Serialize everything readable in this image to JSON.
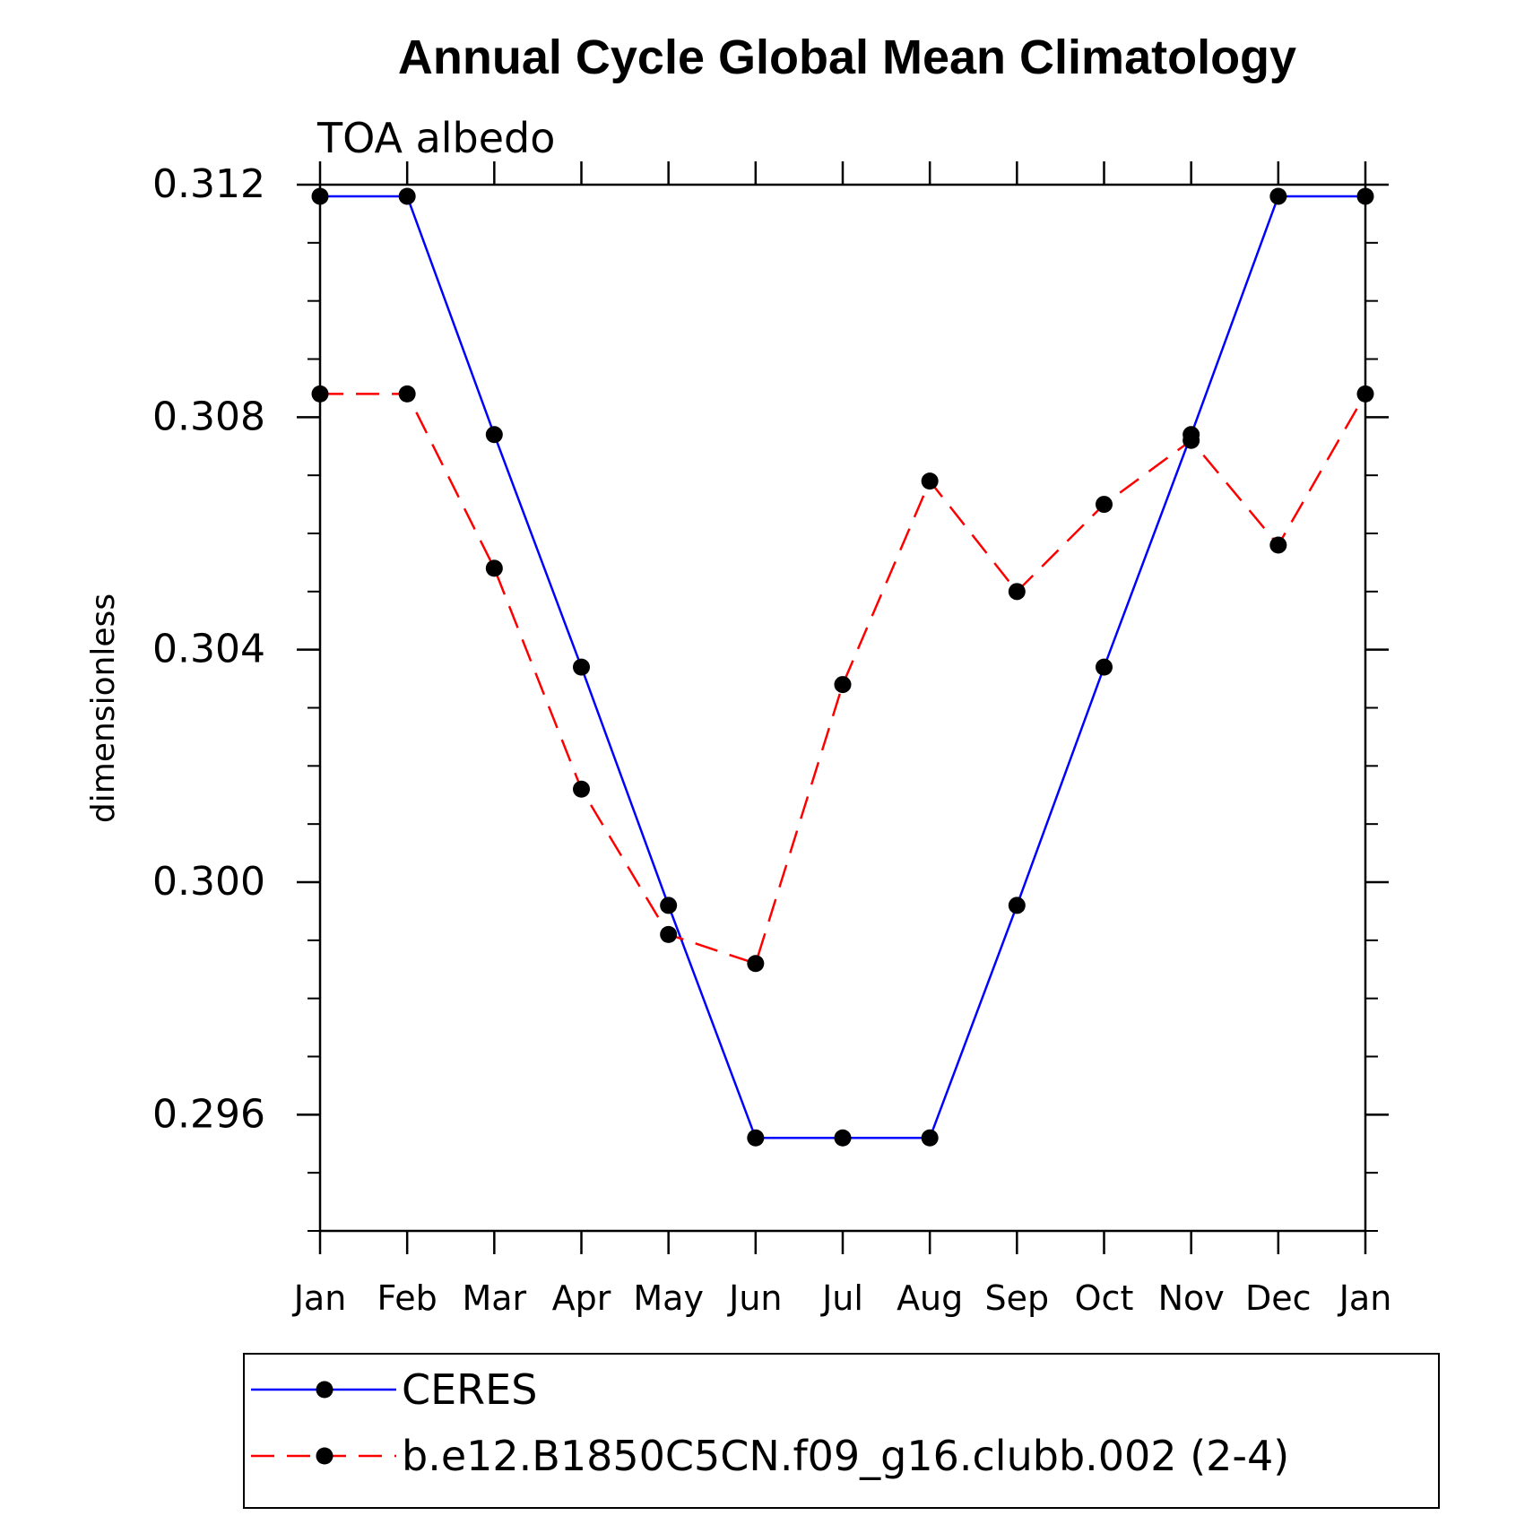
{
  "chart_data": {
    "type": "line",
    "title": "Annual Cycle Global Mean Climatology",
    "subtitle": "TOA albedo",
    "xlabel": "",
    "ylabel": "dimensionless",
    "categories": [
      "Jan",
      "Feb",
      "Mar",
      "Apr",
      "May",
      "Jun",
      "Jul",
      "Aug",
      "Sep",
      "Oct",
      "Nov",
      "Dec",
      "Jan"
    ],
    "ylim": [
      0.294,
      0.312
    ],
    "yticks": [
      0.296,
      0.3,
      0.304,
      0.308,
      0.312
    ],
    "ytick_labels": [
      "0.296",
      "0.300",
      "0.304",
      "0.308",
      "0.312"
    ],
    "legend_position": "bottom",
    "series": [
      {
        "name": "CERES",
        "color": "#0000ff",
        "dash": "solid",
        "values": [
          0.3118,
          0.3118,
          0.3077,
          0.3037,
          0.2996,
          0.2956,
          0.2956,
          0.2956,
          0.2996,
          0.3037,
          0.3077,
          0.3118,
          0.3118
        ]
      },
      {
        "name": "b.e12.B1850C5CN.f09_g16.clubb.002 (2-4)",
        "color": "#ff0000",
        "dash": "dashed",
        "values": [
          0.3084,
          0.3084,
          0.3054,
          0.3016,
          0.2991,
          0.2986,
          0.3034,
          0.3069,
          0.305,
          0.3065,
          0.3076,
          0.3058,
          0.3084
        ]
      }
    ]
  }
}
